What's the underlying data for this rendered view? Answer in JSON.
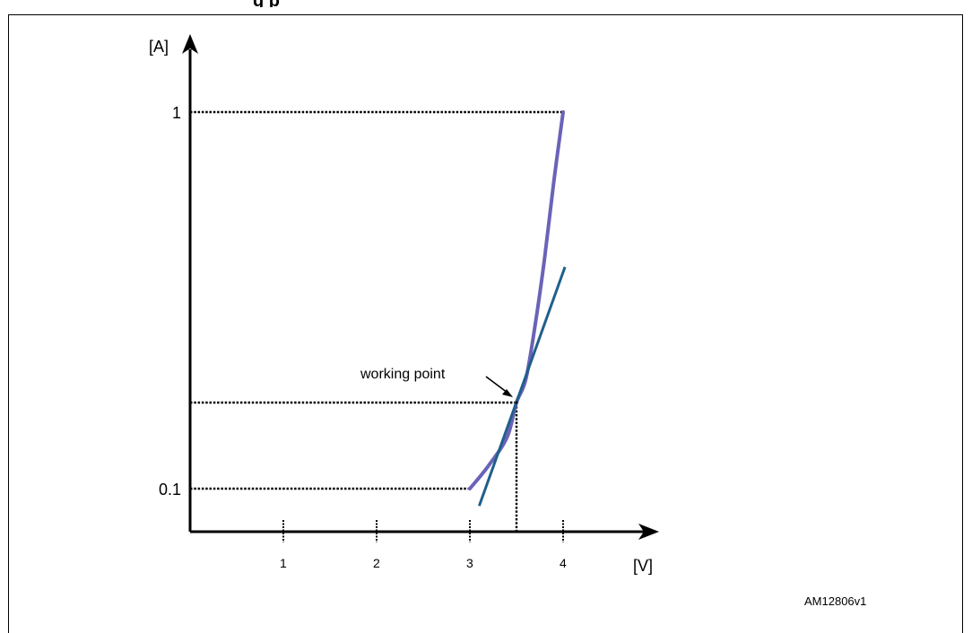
{
  "header": {
    "title_fragment": "g   p"
  },
  "chart_data": {
    "type": "line",
    "ylabel": "[A]",
    "xlabel": "[V]",
    "x_ticks": [
      1,
      2,
      3,
      4
    ],
    "y_ticks": [
      {
        "value": 0.1,
        "label": "0.1"
      },
      {
        "value": 1,
        "label": "1"
      }
    ],
    "xlim": [
      0,
      4.8
    ],
    "ylim": [
      0.05,
      1.1
    ],
    "series": [
      {
        "kind": "curve",
        "color": "#6a63b8",
        "points": [
          [
            3.0,
            0.1
          ],
          [
            3.2,
            0.14
          ],
          [
            3.4,
            0.19
          ],
          [
            3.5,
            0.25
          ],
          [
            3.6,
            0.31
          ],
          [
            3.7,
            0.45
          ],
          [
            3.8,
            0.62
          ],
          [
            3.9,
            0.82
          ],
          [
            4.0,
            1.0
          ]
        ]
      },
      {
        "kind": "tangent",
        "color": "#1f5f8b",
        "points": [
          [
            3.1,
            0.08
          ],
          [
            4.02,
            0.6
          ]
        ]
      }
    ],
    "working_point": {
      "x": 3.5,
      "y": 0.25
    },
    "guides": [
      {
        "from": [
          0,
          1
        ],
        "to": [
          4,
          1
        ]
      },
      {
        "from": [
          0,
          0.25
        ],
        "to": [
          3.5,
          0.25
        ]
      },
      {
        "from": [
          0,
          0.1
        ],
        "to": [
          3.0,
          0.1
        ]
      },
      {
        "from": [
          3.5,
          0.25
        ],
        "to": [
          3.5,
          0.05
        ]
      }
    ],
    "annotation": "working point",
    "colors": {
      "axis": "#000000",
      "curve": "#6a63b8",
      "tangent": "#1f5f8b"
    }
  },
  "figure_id": "AM12806v1"
}
